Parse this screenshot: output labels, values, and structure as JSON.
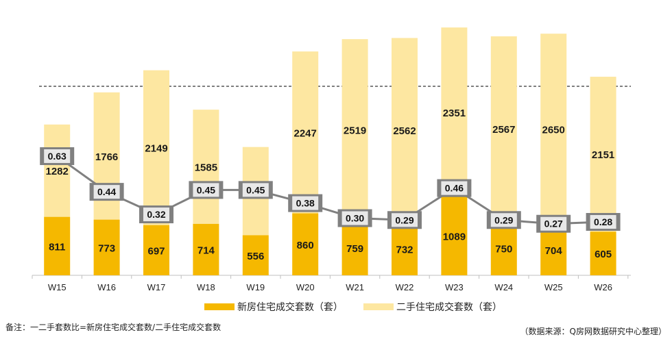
{
  "chart_data": {
    "type": "bar",
    "stacked": true,
    "categories": [
      "W15",
      "W16",
      "W17",
      "W18",
      "W19",
      "W20",
      "W21",
      "W22",
      "W23",
      "W24",
      "W25",
      "W26"
    ],
    "series": [
      {
        "name": "新房住宅成交套数（套）",
        "color": "#F5B800",
        "values": [
          811,
          773,
          697,
          714,
          556,
          860,
          759,
          732,
          1089,
          750,
          704,
          605
        ]
      },
      {
        "name": "二手住宅成交套数（套）",
        "color": "#FDE7A1",
        "values": [
          1282,
          1766,
          2149,
          1585,
          1225,
          2247,
          2519,
          2562,
          2351,
          2567,
          2650,
          2151
        ]
      }
    ],
    "ratio_line": {
      "values": [
        0.63,
        0.44,
        0.32,
        0.45,
        0.45,
        0.38,
        0.3,
        0.29,
        0.46,
        0.29,
        0.27,
        0.28
      ],
      "labels": [
        "0.63",
        "0.44",
        "0.32",
        "0.45",
        "0.45",
        "0.38",
        "0.30",
        "0.29",
        "0.46",
        "0.29",
        "0.27",
        "0.28"
      ],
      "color": "#808080"
    },
    "reference_line": "dashed",
    "legend_position": "bottom"
  },
  "legend": {
    "new_label": "新房住宅成交套数（套）",
    "second_label": "二手住宅成交套数（套）"
  },
  "footnote": "备注：一二手套数比=新房住宅成交套数/二手住宅成交套数",
  "source": "（数据来源：Q房网数据研究中心整理）"
}
